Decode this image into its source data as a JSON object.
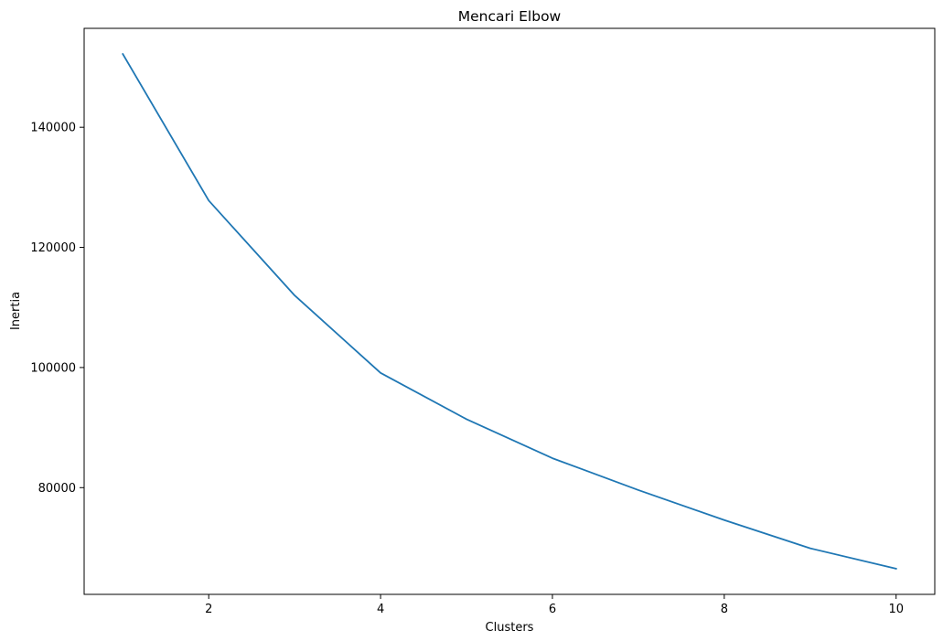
{
  "chart_data": {
    "type": "line",
    "title": "Mencari Elbow",
    "xlabel": "Clusters",
    "ylabel": "Inertia",
    "x": [
      1,
      2,
      3,
      4,
      5,
      6,
      7,
      8,
      9,
      10
    ],
    "series": [
      {
        "values": [
          152200,
          127800,
          112000,
          99100,
          91400,
          84900,
          79600,
          74600,
          69900,
          66500
        ],
        "color": "#1f77b4"
      }
    ],
    "xlim": [
      0.55,
      10.45
    ],
    "ylim": [
      62230,
      156470
    ],
    "xticks": [
      2,
      4,
      6,
      8,
      10
    ],
    "yticks": [
      80000,
      100000,
      120000,
      140000
    ],
    "grid": false,
    "legend": "none"
  }
}
